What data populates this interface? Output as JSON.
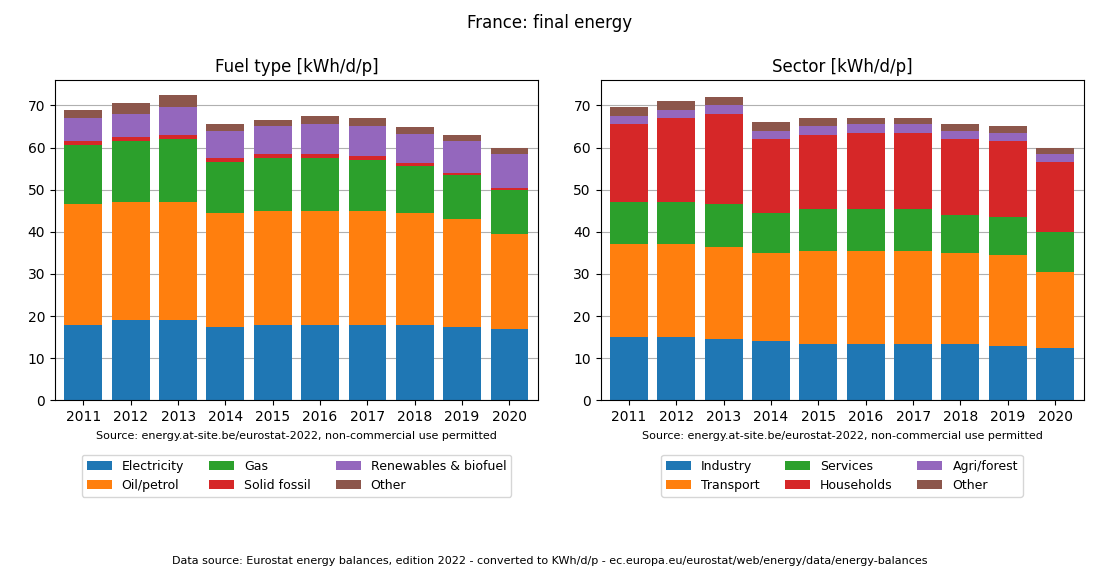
{
  "title": "France: final energy",
  "annotations": [
    "Data source: Eurostat energy balances, edition 2022 - converted to KWh/d/p - ec.europa.eu/eurostat/web/energy/data/energy-balances"
  ],
  "chart_data": [
    {
      "type": "bar",
      "stacked": true,
      "grid": true,
      "legend": "bottom",
      "title": "Fuel type [kWh/d/p]",
      "annotations": [
        "Source: energy.at-site.be/eurostat-2022, non-commercial use permitted"
      ],
      "categories": [
        "2011",
        "2012",
        "2013",
        "2014",
        "2015",
        "2016",
        "2017",
        "2018",
        "2019",
        "2020"
      ],
      "series": [
        {
          "name": "Electricity",
          "values": [
            18.0,
            19.0,
            19.0,
            17.5,
            18.0,
            18.0,
            18.0,
            18.0,
            17.5,
            17.0
          ]
        },
        {
          "name": "Oil/petrol",
          "values": [
            28.5,
            28.0,
            28.0,
            27.0,
            27.0,
            27.0,
            27.0,
            26.5,
            25.5,
            22.5
          ]
        },
        {
          "name": "Gas",
          "values": [
            14.0,
            14.5,
            15.0,
            12.0,
            12.5,
            12.5,
            12.0,
            11.0,
            10.5,
            10.5
          ]
        },
        {
          "name": "Solid fossil",
          "values": [
            1.0,
            1.0,
            1.0,
            1.0,
            1.0,
            1.0,
            1.0,
            0.8,
            0.5,
            0.5
          ]
        },
        {
          "name": "Renewables & biofuel",
          "values": [
            5.5,
            5.5,
            6.5,
            6.5,
            6.5,
            7.0,
            7.0,
            7.0,
            7.5,
            8.0
          ]
        },
        {
          "name": "Other",
          "values": [
            2.0,
            2.5,
            3.0,
            1.5,
            1.5,
            2.0,
            2.0,
            1.5,
            1.5,
            1.5
          ]
        }
      ],
      "ylim": [
        0,
        76
      ],
      "yticks": [
        0,
        10,
        20,
        30,
        40,
        50,
        60,
        70
      ]
    },
    {
      "type": "bar",
      "stacked": true,
      "grid": true,
      "legend": "bottom",
      "title": "Sector [kWh/d/p]",
      "annotations": [
        "Source: energy.at-site.be/eurostat-2022, non-commercial use permitted"
      ],
      "categories": [
        "2011",
        "2012",
        "2013",
        "2014",
        "2015",
        "2016",
        "2017",
        "2018",
        "2019",
        "2020"
      ],
      "series": [
        {
          "name": "Industry",
          "values": [
            15.0,
            15.0,
            14.5,
            14.0,
            13.5,
            13.5,
            13.5,
            13.5,
            13.0,
            12.5
          ]
        },
        {
          "name": "Transport",
          "values": [
            22.0,
            22.0,
            22.0,
            21.0,
            22.0,
            22.0,
            22.0,
            21.5,
            21.5,
            18.0
          ]
        },
        {
          "name": "Services",
          "values": [
            10.0,
            10.0,
            10.0,
            9.5,
            10.0,
            10.0,
            10.0,
            9.0,
            9.0,
            9.5
          ]
        },
        {
          "name": "Households",
          "values": [
            18.5,
            20.0,
            21.5,
            17.5,
            17.5,
            18.0,
            18.0,
            18.0,
            18.0,
            16.5
          ]
        },
        {
          "name": "Agri/forest",
          "values": [
            2.0,
            2.0,
            2.0,
            2.0,
            2.0,
            2.0,
            2.0,
            2.0,
            2.0,
            2.0
          ]
        },
        {
          "name": "Other",
          "values": [
            2.0,
            2.0,
            2.0,
            2.0,
            2.0,
            1.5,
            1.5,
            1.5,
            1.5,
            1.5
          ]
        }
      ],
      "ylim": [
        0,
        76
      ],
      "yticks": [
        0,
        10,
        20,
        30,
        40,
        50,
        60,
        70
      ]
    }
  ]
}
